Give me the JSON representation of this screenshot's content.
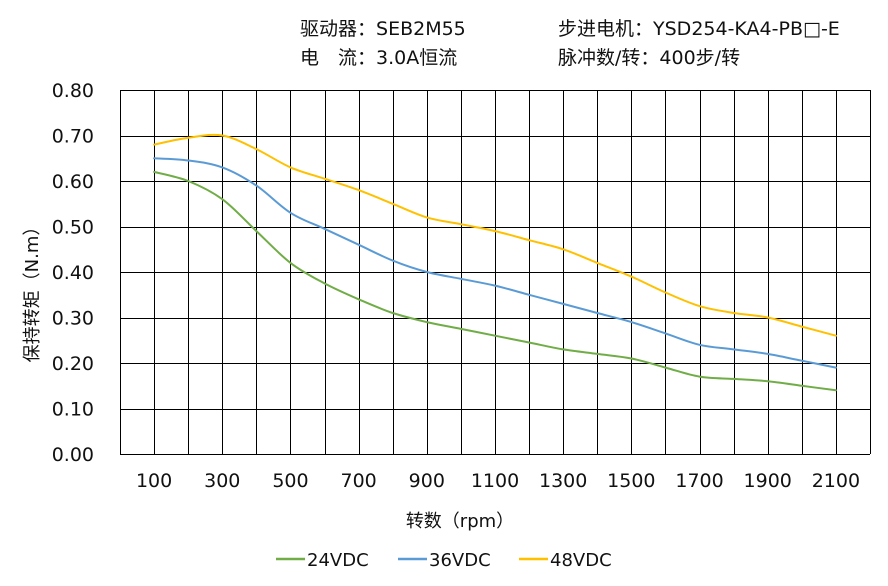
{
  "header": {
    "driver_label": "驱动器：",
    "driver_value": "SEB2M55",
    "motor_label": "步进电机：",
    "motor_value": "YSD254-KA4-PB□-E",
    "current_label": "电　流：",
    "current_value": "3.0A恒流",
    "pulse_label": "脉冲数/转：",
    "pulse_value": "400步/转"
  },
  "chart_data": {
    "type": "line",
    "xlabel": "转数（rpm）",
    "ylabel": "保持转矩（N.m）",
    "xlim": [
      0,
      2200
    ],
    "ylim": [
      0,
      0.8
    ],
    "x_ticks": [
      "100",
      "300",
      "500",
      "700",
      "900",
      "1100",
      "1300",
      "1500",
      "1700",
      "1900",
      "2100"
    ],
    "y_ticks": [
      "0.00",
      "0.10",
      "0.20",
      "0.30",
      "0.40",
      "0.50",
      "0.60",
      "0.70",
      "0.80"
    ],
    "grid": true,
    "legend_position": "bottom",
    "x": [
      100,
      200,
      300,
      400,
      500,
      600,
      700,
      800,
      900,
      1000,
      1100,
      1200,
      1300,
      1400,
      1500,
      1600,
      1700,
      1800,
      1900,
      2000,
      2100
    ],
    "series": [
      {
        "name": "24VDC",
        "color": "#70AD47",
        "values": [
          0.62,
          0.6,
          0.56,
          0.49,
          0.42,
          0.375,
          0.34,
          0.31,
          0.29,
          0.275,
          0.26,
          0.245,
          0.23,
          0.22,
          0.21,
          0.19,
          0.17,
          0.165,
          0.16,
          0.15,
          0.14
        ]
      },
      {
        "name": "36VDC",
        "color": "#5B9BD5",
        "values": [
          0.65,
          0.645,
          0.63,
          0.59,
          0.53,
          0.495,
          0.46,
          0.425,
          0.4,
          0.385,
          0.37,
          0.35,
          0.33,
          0.31,
          0.29,
          0.265,
          0.24,
          0.23,
          0.22,
          0.205,
          0.19
        ]
      },
      {
        "name": "48VDC",
        "color": "#FFC000",
        "values": [
          0.68,
          0.695,
          0.7,
          0.67,
          0.63,
          0.605,
          0.58,
          0.55,
          0.52,
          0.505,
          0.49,
          0.47,
          0.45,
          0.42,
          0.39,
          0.355,
          0.325,
          0.31,
          0.3,
          0.28,
          0.26
        ]
      }
    ]
  }
}
